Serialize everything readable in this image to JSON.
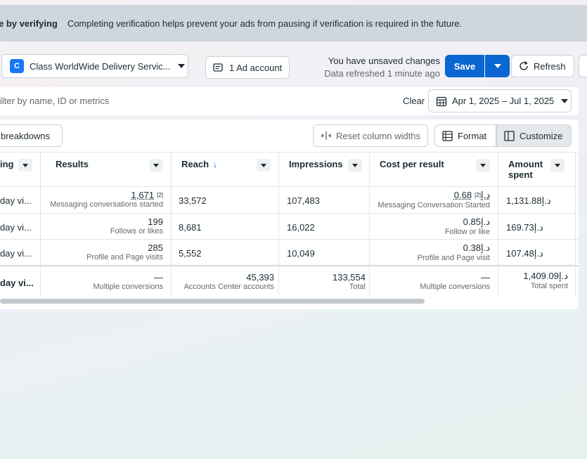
{
  "banner": {
    "bold": "e by verifying",
    "text": "Completing verification helps prevent your ads from pausing if verification is required in the future."
  },
  "toolbar": {
    "account_badge": "C",
    "account_name": "Class WorldWide Delivery Servic...",
    "ad_account": "1 Ad account",
    "unsaved": "You have unsaved changes",
    "refreshed": "Data refreshed 1 minute ago",
    "save": "Save",
    "refresh": "Refresh"
  },
  "filter": {
    "placeholder": "ilter by name, ID or metrics",
    "clear": "Clear",
    "date_range": "Apr 1, 2025 – Jul 1, 2025"
  },
  "table_tools": {
    "breakdowns": "breakdowns",
    "reset_widths": "Reset column widths",
    "format": "Format",
    "customize": "Customize"
  },
  "columns": {
    "c0": "ing",
    "results": "Results",
    "reach": "Reach",
    "reach_sort": "↓",
    "impressions": "Impressions",
    "cpr": "Cost per result",
    "amount1": "Amount",
    "amount2": "spent"
  },
  "rows": [
    {
      "name": "day vi...",
      "results": "1,671",
      "results_sup": "[2]",
      "results_sub": "Messaging conversations started",
      "reach": "33,572",
      "impressions": "107,483",
      "cpr": "0.68د.إ",
      "cpr_sup": "[2]",
      "cpr_sub": "Messaging Conversation Started",
      "amount": "1,131.88د.إ"
    },
    {
      "name": "day vi...",
      "results": "199",
      "results_sup": "",
      "results_sub": "Follows or likes",
      "reach": "8,681",
      "impressions": "16,022",
      "cpr": "0.85د.إ",
      "cpr_sup": "",
      "cpr_sub": "Follow or like",
      "amount": "169.73د.إ"
    },
    {
      "name": "day vi...",
      "results": "285",
      "results_sup": "",
      "results_sub": "Profile and Page visits",
      "reach": "5,552",
      "impressions": "10,049",
      "cpr": "0.38د.إ",
      "cpr_sup": "",
      "cpr_sub": "Profile and Page visit",
      "amount": "107.48د.إ"
    }
  ],
  "totals": {
    "name": "day vi...",
    "results": "—",
    "results_sub": "Multiple conversions",
    "reach": "45,393",
    "reach_sub": "Accounts Center accounts",
    "impressions": "133,554",
    "impressions_sub": "Total",
    "cpr": "—",
    "cpr_sub": "Multiple conversions",
    "amount": "1,409.09د.إ",
    "amount_sub": "Total spent"
  }
}
